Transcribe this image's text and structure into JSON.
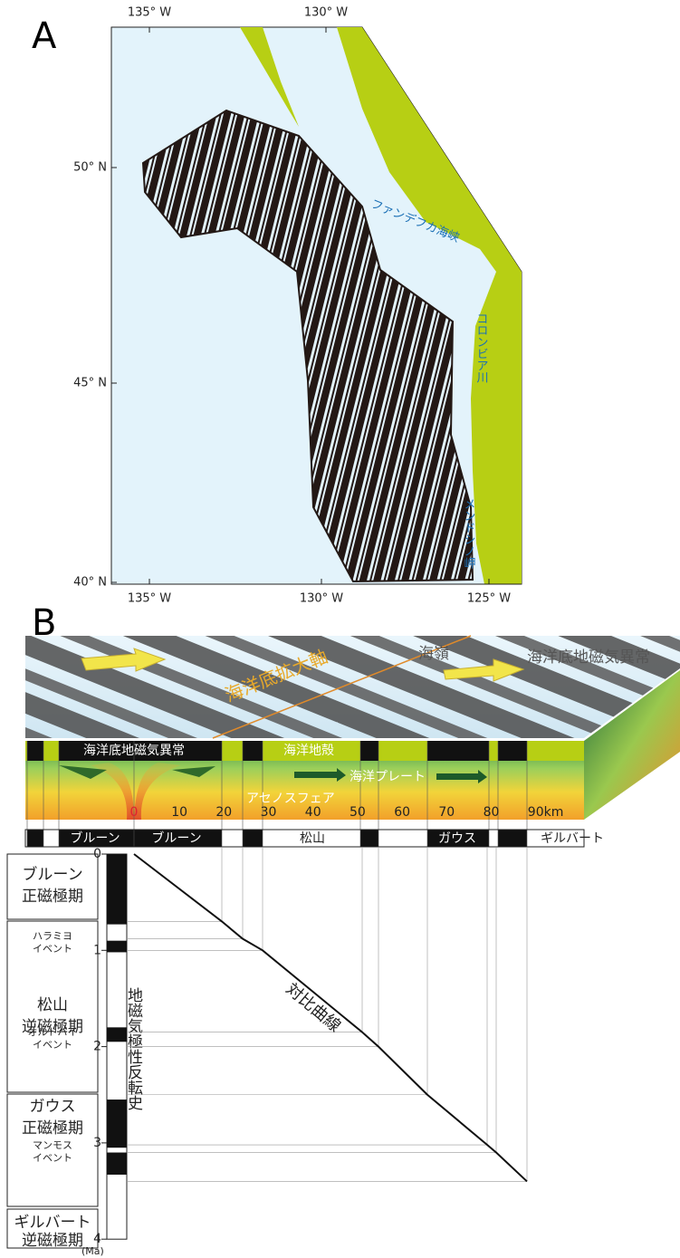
{
  "panel_a": {
    "label": "A",
    "top_lon": [
      "135° W",
      "130° W"
    ],
    "lat": [
      "50° N",
      "45° N",
      "40° N"
    ],
    "bottom_lon": [
      "135° W",
      "130° W",
      "125° W"
    ],
    "places": [
      "ファンデフカ海峡",
      "コロンビア川",
      "メンドシノ岬"
    ]
  },
  "panel_b": {
    "label": "B",
    "surface": {
      "ridge": "海嶺",
      "anomaly": "海洋底地磁気異常",
      "axis": "海洋底拡大軸"
    },
    "section": {
      "anomaly": "海洋底地磁気異常",
      "crust": "海洋地殻",
      "plate": "海洋プレート",
      "asthenosphere": "アセノスフェア"
    },
    "distance_ticks": [
      "0",
      "10",
      "20",
      "30",
      "40",
      "50",
      "60",
      "70",
      "80",
      "90km"
    ],
    "chrons": [
      "ブルーン",
      "ブルーン",
      "松山",
      "ガウス",
      "ギルバート"
    ],
    "table": [
      {
        "name": "ブルーン",
        "kind": "正磁極期"
      },
      {
        "name": "松山",
        "kind": "逆磁極期"
      },
      {
        "name": "ガウス",
        "kind": "正磁極期"
      },
      {
        "name": "ギルバート",
        "kind": "逆磁極期"
      }
    ],
    "events": [
      {
        "name": "ハラミヨ",
        "kind": "イベント"
      },
      {
        "name": "オルドバイ",
        "kind": "イベント"
      },
      {
        "name": "マンモス",
        "kind": "イベント"
      }
    ],
    "time_ticks": [
      "0",
      "1",
      "2",
      "3",
      "4"
    ],
    "time_unit": "(Ma)",
    "history_label": "地磁気極性反転史",
    "curve_label": "対比曲線"
  }
}
